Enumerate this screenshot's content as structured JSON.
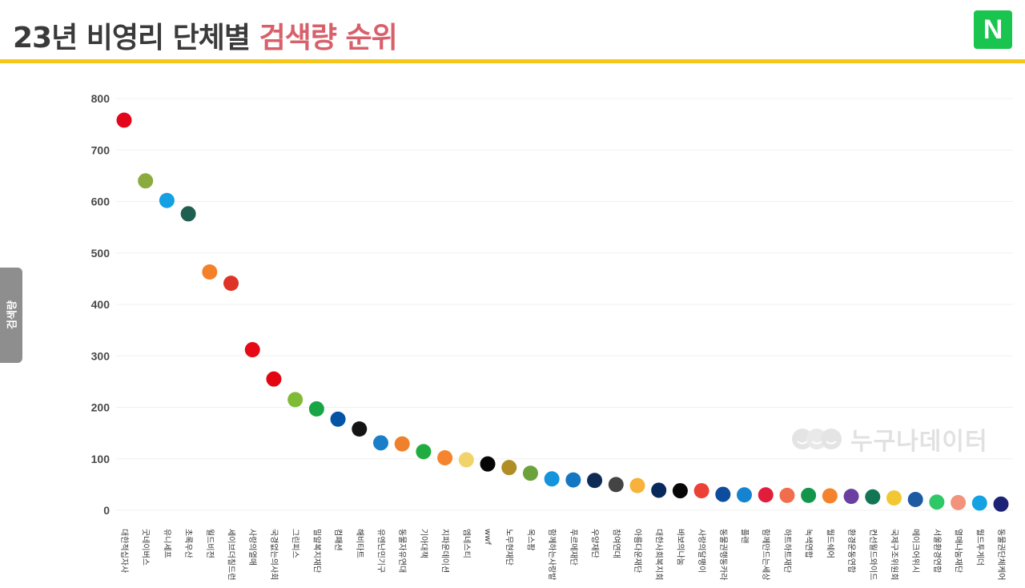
{
  "header": {
    "title_main": "23년 비영리 단체별",
    "title_accent": "검색량 순위",
    "logo_text": "N"
  },
  "y_axis_tab": {
    "label": "검색량"
  },
  "watermark": {
    "text": "누구나데이터"
  },
  "colors": {
    "title": "#3a3a3a",
    "title_accent": "#d7606b",
    "header_rule": "#f5c518",
    "naver_green": "#19c44f",
    "gridline": "#f0f0f0"
  },
  "chart_data": {
    "type": "scatter",
    "ylim": [
      0,
      800
    ],
    "yticks": [
      0,
      100,
      200,
      300,
      400,
      500,
      600,
      700,
      800
    ],
    "grid": true,
    "categories": [
      "대한적십자사",
      "굿네이버스",
      "유니세프",
      "초록우산",
      "월드비전",
      "세이브더칠드런",
      "사랑의열매",
      "국경없는의사회",
      "그린피스",
      "밀알복지재단",
      "컴패션",
      "해비타트",
      "유엔난민기구",
      "동물자유연대",
      "기아대책",
      "지파운데이션",
      "엠네스티",
      "wwf",
      "노무현재단",
      "옥스팜",
      "함께하는사랑밭",
      "푸르메재단",
      "우양재단",
      "참여연대",
      "아름다운재단",
      "대한사회복지회",
      "바보의나눔",
      "사랑의달팽이",
      "동물권행동카라",
      "플랜",
      "함께만드는세상",
      "하트하트재단",
      "녹색연합",
      "월드쉐어",
      "환경운동연합",
      "컨선월드와이드",
      "국제구조위원회",
      "메이크어위시",
      "서울환경연합",
      "열매나눔재단",
      "월드투게더",
      "동물권단체케어"
    ],
    "values": [
      758,
      640,
      602,
      576,
      463,
      441,
      312,
      255,
      215,
      197,
      177,
      158,
      131,
      129,
      114,
      102,
      98,
      90,
      83,
      72,
      61,
      59,
      58,
      50,
      48,
      39,
      38,
      38,
      31,
      30,
      30,
      29,
      29,
      28,
      27,
      26,
      24,
      21,
      16,
      15,
      14,
      12
    ],
    "point_colors": [
      "#e3061a",
      "#8aab3e",
      "#14a0e2",
      "#1f5e50",
      "#f4802a",
      "#de3327",
      "#e60a17",
      "#e20613",
      "#80bb36",
      "#17a546",
      "#0454a6",
      "#141414",
      "#1b7ec8",
      "#f0812c",
      "#20ad3f",
      "#f4842e",
      "#f2d36a",
      "#050505",
      "#b08d25",
      "#6ba23b",
      "#1394dc",
      "#1576c2",
      "#0e2b55",
      "#444444",
      "#f8b13a",
      "#08295c",
      "#070707",
      "#ec4236",
      "#0e4c9d",
      "#1584d0",
      "#e11d3b",
      "#f26c4e",
      "#14964a",
      "#f5832e",
      "#6a3fa0",
      "#127655",
      "#f2c832",
      "#1c5aa3",
      "#2ec866",
      "#f2937b",
      "#14a2e2",
      "#1c2377"
    ]
  }
}
